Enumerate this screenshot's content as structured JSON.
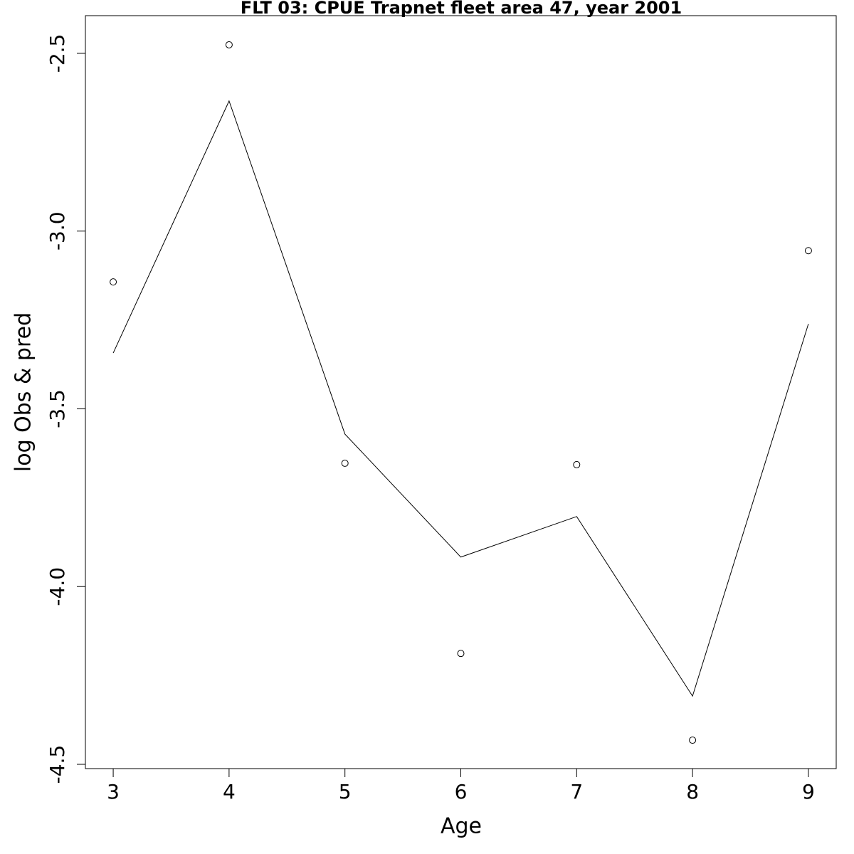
{
  "chart_data": {
    "type": "line",
    "title": "FLT 03: CPUE Trapnet fleet area 47, year 2001",
    "x_label": "Age",
    "y_label": "log Obs & pred",
    "x": [
      3,
      4,
      5,
      6,
      7,
      8,
      9
    ],
    "series": [
      {
        "style": "points",
        "color": "#000000",
        "values": [
          -3.143,
          -2.476,
          -3.653,
          -4.188,
          -3.657,
          -4.432,
          -3.055
        ]
      },
      {
        "style": "line",
        "color": "#000000",
        "values": [
          -3.343,
          -2.634,
          -3.571,
          -3.917,
          -3.803,
          -4.308,
          -3.261
        ]
      }
    ],
    "xlim": [
      2.76,
      9.24
    ],
    "xticks": [
      3,
      4,
      5,
      6,
      7,
      8,
      9
    ],
    "ylim": [
      -4.512,
      -2.394
    ],
    "yticks": [
      -2.5,
      {
        "value": -3,
        "label": "-3.0"
      },
      -3.5,
      {
        "value": -4,
        "label": "-4.0"
      },
      -4.5
    ]
  }
}
